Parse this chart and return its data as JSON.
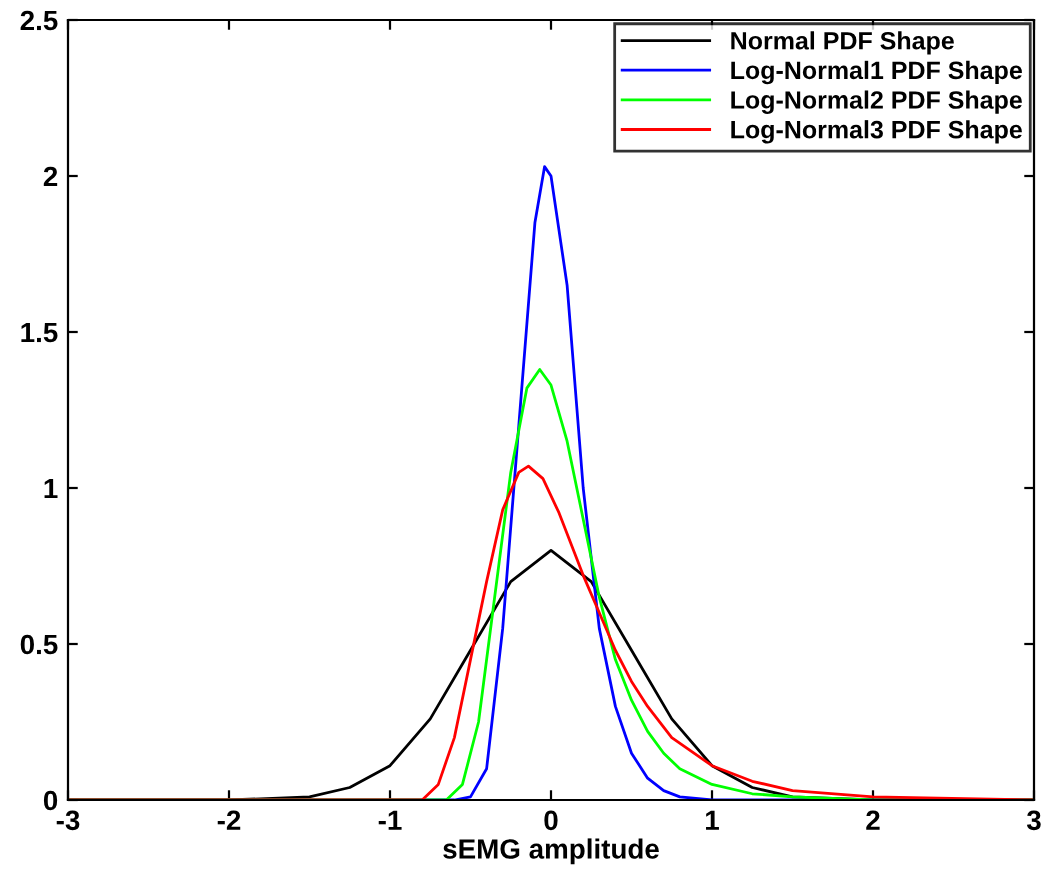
{
  "chart_data": {
    "type": "line",
    "xlabel": "sEMG amplitude",
    "xlim": [
      -3,
      3
    ],
    "ylim": [
      0,
      2.5
    ],
    "xticks": [
      -3,
      -2,
      -1,
      0,
      1,
      2,
      3
    ],
    "yticks": [
      0,
      0.5,
      1,
      1.5,
      2,
      2.5
    ],
    "grid": false,
    "legend": "top right",
    "marker": "none",
    "line_style": "solid",
    "series": [
      {
        "name": "Normal PDF Shape",
        "color": "#000000",
        "x": [
          -3,
          -2,
          -1.5,
          -1.25,
          -1,
          -0.75,
          -0.5,
          -0.25,
          0,
          0.25,
          0.5,
          0.75,
          1,
          1.25,
          1.5,
          2,
          3
        ],
        "values": [
          0,
          0,
          0.01,
          0.04,
          0.11,
          0.26,
          0.48,
          0.7,
          0.8,
          0.7,
          0.48,
          0.26,
          0.11,
          0.04,
          0.01,
          0,
          0
        ]
      },
      {
        "name": "Log-Normal1 PDF Shape",
        "color": "#0000ff",
        "x": [
          -3,
          -0.6,
          -0.5,
          -0.4,
          -0.3,
          -0.2,
          -0.1,
          -0.04,
          0,
          0.1,
          0.2,
          0.3,
          0.4,
          0.5,
          0.6,
          0.7,
          0.8,
          1,
          3
        ],
        "values": [
          0,
          0,
          0.01,
          0.1,
          0.55,
          1.2,
          1.85,
          2.03,
          2.0,
          1.65,
          1.0,
          0.55,
          0.3,
          0.15,
          0.07,
          0.03,
          0.01,
          0,
          0
        ]
      },
      {
        "name": "Log-Normal2 PDF Shape",
        "color": "#00ff00",
        "x": [
          -3,
          -0.65,
          -0.55,
          -0.45,
          -0.35,
          -0.25,
          -0.15,
          -0.07,
          0,
          0.1,
          0.2,
          0.3,
          0.4,
          0.5,
          0.6,
          0.7,
          0.8,
          1,
          1.25,
          1.5,
          2,
          3
        ],
        "values": [
          0,
          0,
          0.05,
          0.25,
          0.65,
          1.05,
          1.32,
          1.38,
          1.33,
          1.15,
          0.9,
          0.65,
          0.45,
          0.32,
          0.22,
          0.15,
          0.1,
          0.05,
          0.02,
          0.01,
          0,
          0
        ]
      },
      {
        "name": "Log-Normal3 PDF Shape",
        "color": "#ff0000",
        "x": [
          -3,
          -0.8,
          -0.7,
          -0.6,
          -0.5,
          -0.4,
          -0.3,
          -0.2,
          -0.14,
          -0.05,
          0.05,
          0.2,
          0.3,
          0.4,
          0.5,
          0.6,
          0.75,
          1,
          1.25,
          1.5,
          2,
          3
        ],
        "values": [
          0,
          0,
          0.05,
          0.2,
          0.45,
          0.7,
          0.93,
          1.05,
          1.07,
          1.03,
          0.92,
          0.72,
          0.6,
          0.48,
          0.38,
          0.3,
          0.2,
          0.11,
          0.06,
          0.03,
          0.01,
          0
        ]
      }
    ]
  }
}
